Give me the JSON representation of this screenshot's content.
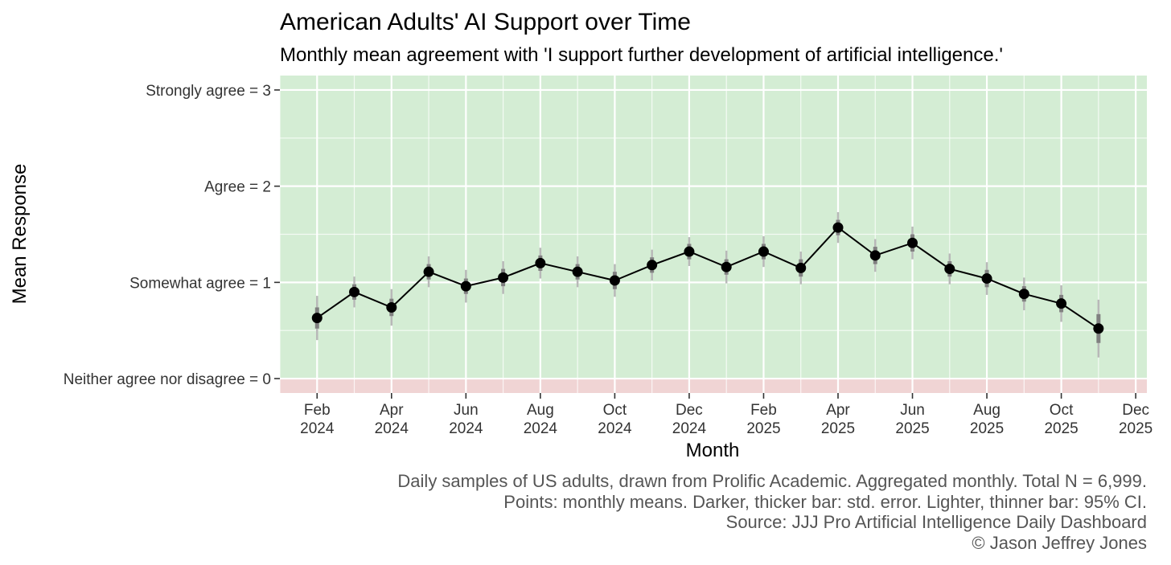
{
  "chart_data": {
    "type": "line",
    "title": "American Adults' AI Support over Time",
    "subtitle": "Monthly mean agreement with 'I support further development of artificial intelligence.'",
    "xlabel": "Month",
    "ylabel": "Mean Response",
    "ylim": [
      -0.15,
      3.15
    ],
    "y_ticks": [
      {
        "value": 0,
        "label": "Neither agree nor disagree = 0"
      },
      {
        "value": 1,
        "label": "Somewhat agree = 1"
      },
      {
        "value": 2,
        "label": "Agree = 2"
      },
      {
        "value": 3,
        "label": "Strongly agree = 3"
      }
    ],
    "x_ticks": [
      {
        "index": 0,
        "month": "Feb",
        "year": "2024"
      },
      {
        "index": 2,
        "month": "Apr",
        "year": "2024"
      },
      {
        "index": 4,
        "month": "Jun",
        "year": "2024"
      },
      {
        "index": 6,
        "month": "Aug",
        "year": "2024"
      },
      {
        "index": 8,
        "month": "Oct",
        "year": "2024"
      },
      {
        "index": 10,
        "month": "Dec",
        "year": "2024"
      },
      {
        "index": 12,
        "month": "Feb",
        "year": "2025"
      },
      {
        "index": 14,
        "month": "Apr",
        "year": "2025"
      },
      {
        "index": 16,
        "month": "Jun",
        "year": "2025"
      },
      {
        "index": 18,
        "month": "Aug",
        "year": "2025"
      },
      {
        "index": 20,
        "month": "Oct",
        "year": "2025"
      },
      {
        "index": 22,
        "month": "Dec",
        "year": "2025"
      }
    ],
    "x_range": [
      -1,
      22.3
    ],
    "regions": [
      {
        "name": "agree",
        "from": 0,
        "to": 3.15,
        "color": "#d4edd4"
      },
      {
        "name": "disagree",
        "from": -0.15,
        "to": 0,
        "color": "#f0d4d4"
      }
    ],
    "series": [
      {
        "name": "Monthly mean",
        "points": [
          {
            "month": "2024-02",
            "mean": 0.63,
            "se": 0.11,
            "ci": 0.23
          },
          {
            "month": "2024-03",
            "mean": 0.9,
            "se": 0.08,
            "ci": 0.16
          },
          {
            "month": "2024-04",
            "mean": 0.74,
            "se": 0.09,
            "ci": 0.19
          },
          {
            "month": "2024-05",
            "mean": 1.11,
            "se": 0.08,
            "ci": 0.16
          },
          {
            "month": "2024-06",
            "mean": 0.96,
            "se": 0.08,
            "ci": 0.17
          },
          {
            "month": "2024-07",
            "mean": 1.05,
            "se": 0.09,
            "ci": 0.17
          },
          {
            "month": "2024-08",
            "mean": 1.2,
            "se": 0.08,
            "ci": 0.16
          },
          {
            "month": "2024-09",
            "mean": 1.11,
            "se": 0.08,
            "ci": 0.16
          },
          {
            "month": "2024-10",
            "mean": 1.02,
            "se": 0.09,
            "ci": 0.17
          },
          {
            "month": "2024-11",
            "mean": 1.18,
            "se": 0.08,
            "ci": 0.16
          },
          {
            "month": "2024-12",
            "mean": 1.32,
            "se": 0.08,
            "ci": 0.15
          },
          {
            "month": "2025-01",
            "mean": 1.16,
            "se": 0.08,
            "ci": 0.17
          },
          {
            "month": "2025-02",
            "mean": 1.32,
            "se": 0.08,
            "ci": 0.16
          },
          {
            "month": "2025-03",
            "mean": 1.15,
            "se": 0.09,
            "ci": 0.17
          },
          {
            "month": "2025-04",
            "mean": 1.57,
            "se": 0.08,
            "ci": 0.16
          },
          {
            "month": "2025-05",
            "mean": 1.28,
            "se": 0.09,
            "ci": 0.17
          },
          {
            "month": "2025-06",
            "mean": 1.41,
            "se": 0.09,
            "ci": 0.17
          },
          {
            "month": "2025-07",
            "mean": 1.14,
            "se": 0.08,
            "ci": 0.16
          },
          {
            "month": "2025-08",
            "mean": 1.04,
            "se": 0.09,
            "ci": 0.17
          },
          {
            "month": "2025-09",
            "mean": 0.88,
            "se": 0.08,
            "ci": 0.17
          },
          {
            "month": "2025-10",
            "mean": 0.78,
            "se": 0.09,
            "ci": 0.19
          },
          {
            "month": "2025-11",
            "mean": 0.52,
            "se": 0.15,
            "ci": 0.3
          }
        ]
      }
    ],
    "caption": [
      "Daily samples of US adults, drawn from Prolific Academic. Aggregated monthly. Total N = 6,999.",
      "Points: monthly means. Darker, thicker bar: std. error.  Lighter, thinner bar: 95% CI.",
      "Source: JJJ Pro Artificial Intelligence Daily Dashboard",
      "© Jason Jeffrey Jones"
    ]
  }
}
